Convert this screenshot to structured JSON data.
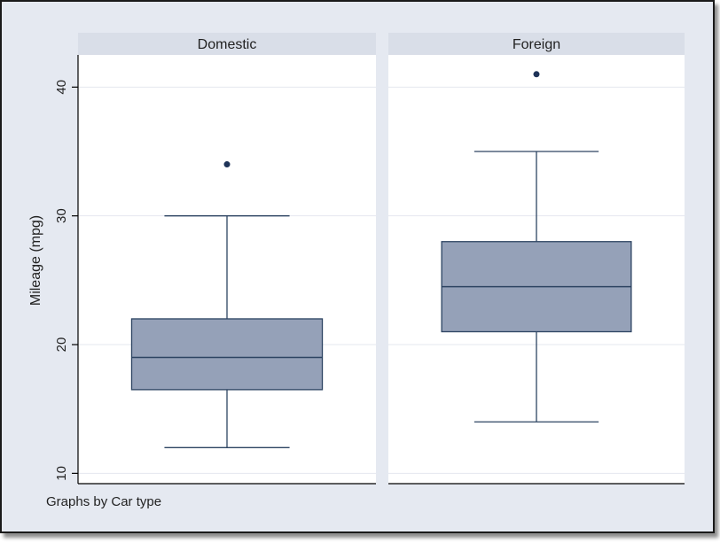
{
  "chart_data": {
    "type": "box",
    "ylabel": "Mileage (mpg)",
    "ylim": [
      9.2,
      42.5
    ],
    "yticks": [
      10,
      20,
      30,
      40
    ],
    "grid": true,
    "note": "Graphs by Car type",
    "colors": {
      "box_fill": "#95a1b8",
      "box_line": "#2d4462",
      "marker": "#1e3358",
      "grid": "#e4e7ef",
      "strip": "#d9dee8",
      "background": "#e5e9f1"
    },
    "panels": [
      {
        "name": "Domestic",
        "whisker_low": 12,
        "q1": 16.5,
        "median": 19,
        "q3": 22,
        "whisker_high": 30,
        "outliers": [
          34
        ]
      },
      {
        "name": "Foreign",
        "whisker_low": 14,
        "q1": 21,
        "median": 24.5,
        "q3": 28,
        "whisker_high": 35,
        "outliers": [
          41
        ]
      }
    ]
  }
}
